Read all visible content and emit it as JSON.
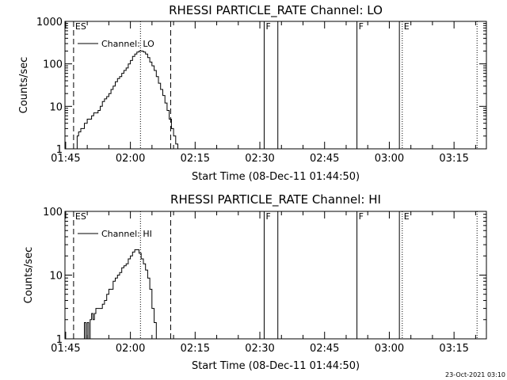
{
  "chart_data": [
    {
      "type": "line",
      "title": "RHESSI PARTICLE_RATE Channel: LO",
      "xlabel": "Start Time (08-Dec-11 01:44:50)",
      "ylabel": "Counts/sec",
      "yscale": "log",
      "ylim": [
        1,
        1000
      ],
      "xlim": [
        "01:44:50",
        "03:22:30"
      ],
      "xticks": [
        "01:45",
        "02:00",
        "02:15",
        "02:30",
        "02:45",
        "03:00",
        "03:15"
      ],
      "yticks": [
        "1",
        "10",
        "100",
        "1000"
      ],
      "legend": {
        "placement": "top-left",
        "entries": [
          "Channel: LO"
        ]
      },
      "series": [
        {
          "name": "Channel: LO",
          "x": [
            "01:47:10",
            "01:47:40",
            "01:48:00",
            "01:48:30",
            "01:49:00",
            "01:49:20",
            "01:49:40",
            "01:50:00",
            "01:50:30",
            "01:51:00",
            "01:51:30",
            "01:52:00",
            "01:52:30",
            "01:53:00",
            "01:53:30",
            "01:54:00",
            "01:54:30",
            "01:55:00",
            "01:55:30",
            "01:56:00",
            "01:56:30",
            "01:57:00",
            "01:57:30",
            "01:58:00",
            "01:58:30",
            "01:59:00",
            "01:59:30",
            "02:00:00",
            "02:00:30",
            "02:01:00",
            "02:01:30",
            "02:02:00",
            "02:02:30",
            "02:03:00",
            "02:03:30",
            "02:04:00",
            "02:04:30",
            "02:05:00",
            "02:05:30",
            "02:06:00",
            "02:06:30",
            "02:07:00",
            "02:07:30",
            "02:08:00",
            "02:08:30",
            "02:09:00",
            "02:09:30",
            "02:10:00",
            "02:10:30",
            "02:11:00"
          ],
          "values": [
            1,
            2,
            2.5,
            3,
            3,
            4,
            4,
            5,
            5,
            6,
            7,
            7,
            8,
            10,
            13,
            15,
            17,
            20,
            25,
            30,
            38,
            45,
            50,
            60,
            70,
            80,
            100,
            120,
            150,
            170,
            190,
            200,
            200,
            190,
            170,
            140,
            110,
            90,
            70,
            50,
            35,
            25,
            18,
            12,
            8,
            5,
            3,
            2,
            1.3,
            1
          ]
        }
      ],
      "markers": [
        {
          "label": "ES",
          "time": "01:46:50",
          "style": "dashed"
        },
        {
          "label": "",
          "time": "02:02:20",
          "style": "dotted"
        },
        {
          "label": "",
          "time": "02:09:20",
          "style": "dashed"
        },
        {
          "label": "F",
          "time": "02:31:00",
          "style": "solid"
        },
        {
          "label": "",
          "time": "02:34:10",
          "style": "solid"
        },
        {
          "label": "F",
          "time": "02:52:30",
          "style": "solid"
        },
        {
          "label": "",
          "time": "03:02:20",
          "style": "solid"
        },
        {
          "label": "E",
          "time": "03:03:00",
          "style": "dotted"
        },
        {
          "label": "",
          "time": "03:20:20",
          "style": "dotted"
        }
      ]
    },
    {
      "type": "line",
      "title": "RHESSI PARTICLE_RATE Channel: HI",
      "xlabel": "Start Time (08-Dec-11 01:44:50)",
      "ylabel": "Counts/sec",
      "yscale": "log",
      "ylim": [
        1,
        100
      ],
      "xlim": [
        "01:44:50",
        "03:22:30"
      ],
      "xticks": [
        "01:45",
        "02:00",
        "02:15",
        "02:30",
        "02:45",
        "03:00",
        "03:15"
      ],
      "yticks": [
        "1",
        "10",
        "100"
      ],
      "legend": {
        "placement": "top-left",
        "entries": [
          "Channel: HI"
        ]
      },
      "series": [
        {
          "name": "Channel: HI",
          "x": [
            "01:49:10",
            "01:49:20",
            "01:49:40",
            "01:50:00",
            "01:50:20",
            "01:50:40",
            "01:51:00",
            "01:51:20",
            "01:51:40",
            "01:52:00",
            "01:52:30",
            "01:53:00",
            "01:53:30",
            "01:54:00",
            "01:54:30",
            "01:55:00",
            "01:55:30",
            "01:56:00",
            "01:56:30",
            "01:57:00",
            "01:57:30",
            "01:58:00",
            "01:58:30",
            "01:59:00",
            "01:59:30",
            "02:00:00",
            "02:00:30",
            "02:01:00",
            "02:01:30",
            "02:02:00",
            "02:02:30",
            "02:03:00",
            "02:03:30",
            "02:04:00",
            "02:04:30",
            "02:05:00",
            "02:05:30",
            "02:06:00"
          ],
          "values": [
            1,
            1.8,
            1,
            1.8,
            1,
            2,
            2.5,
            2,
            2.5,
            3,
            3,
            3,
            3.5,
            4,
            5,
            6,
            6,
            8,
            9,
            10,
            11,
            13,
            14,
            15,
            18,
            20,
            23,
            25,
            25,
            22,
            18,
            15,
            12,
            9,
            6,
            3,
            1.8,
            1
          ]
        }
      ],
      "markers": [
        {
          "label": "ES",
          "time": "01:46:50",
          "style": "dashed"
        },
        {
          "label": "",
          "time": "02:02:20",
          "style": "dotted"
        },
        {
          "label": "",
          "time": "02:09:20",
          "style": "dashed"
        },
        {
          "label": "F",
          "time": "02:31:00",
          "style": "solid"
        },
        {
          "label": "",
          "time": "02:34:10",
          "style": "solid"
        },
        {
          "label": "F",
          "time": "02:52:30",
          "style": "solid"
        },
        {
          "label": "",
          "time": "03:02:20",
          "style": "solid"
        },
        {
          "label": "E",
          "time": "03:03:00",
          "style": "dotted"
        },
        {
          "label": "",
          "time": "03:20:20",
          "style": "dotted"
        }
      ]
    }
  ],
  "footer": {
    "timestamp": "23-Oct-2021 03:10"
  }
}
